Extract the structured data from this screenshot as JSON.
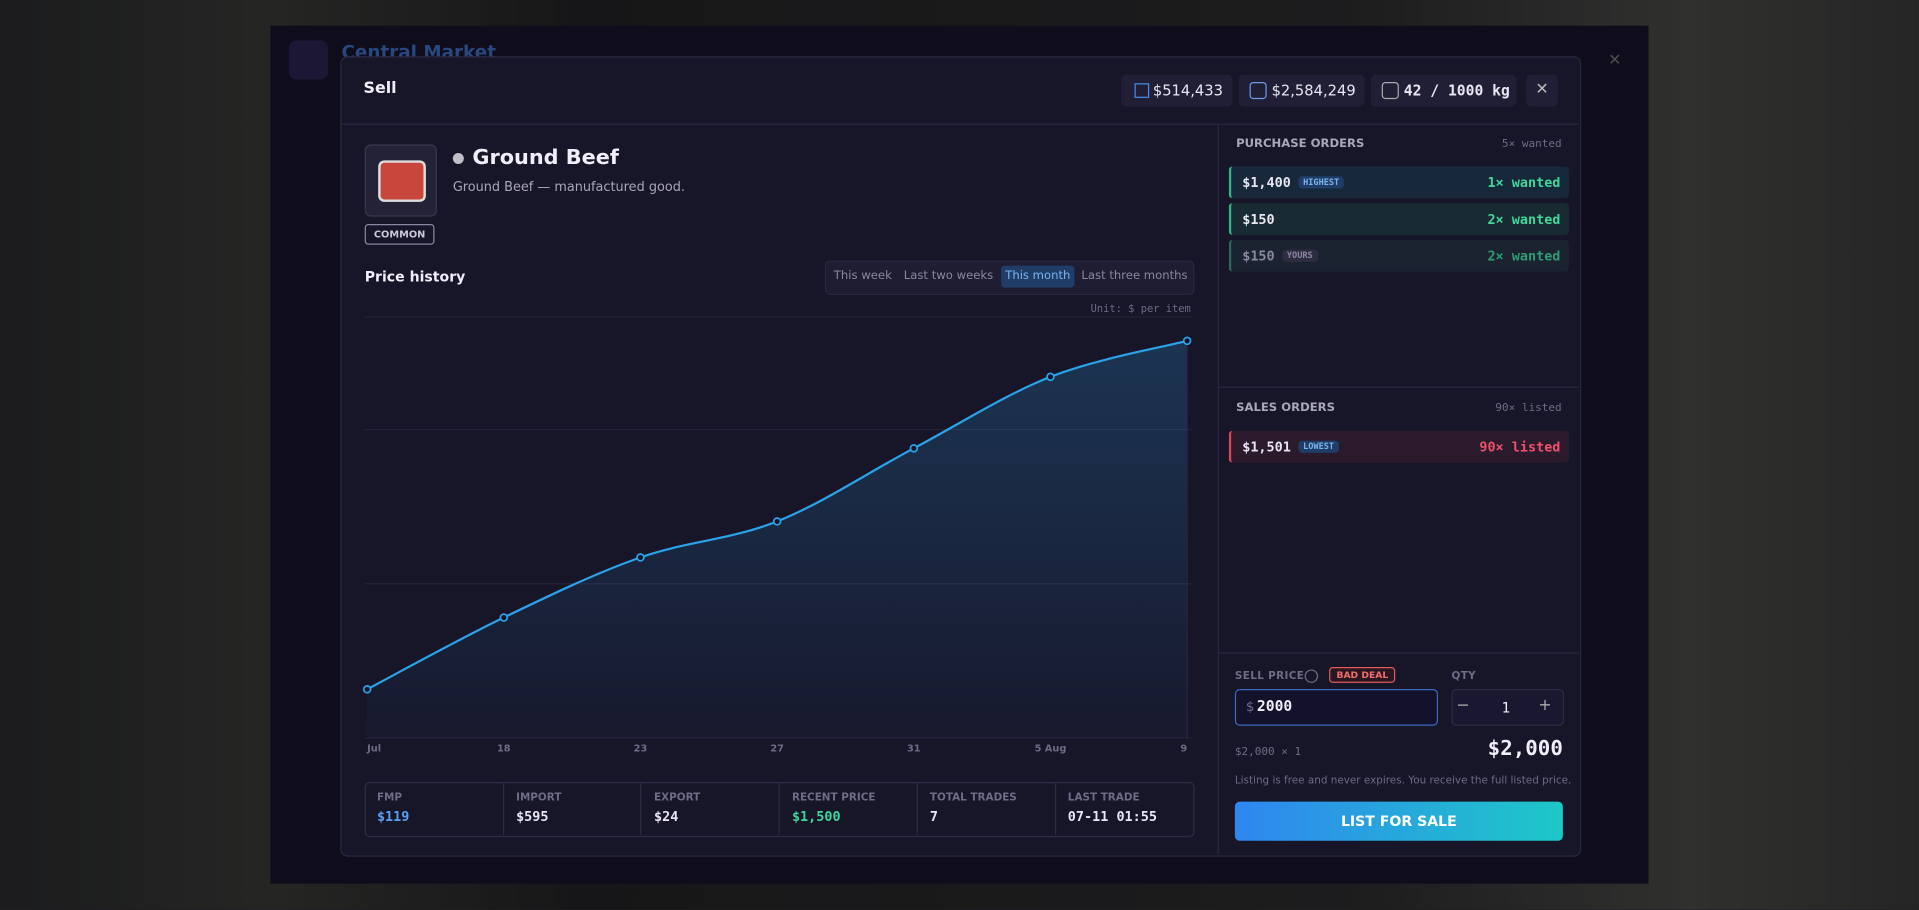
{
  "app": {
    "title": "Central Market"
  },
  "modal": {
    "title": "Sell",
    "balances": [
      "$514,433",
      "$2,584,249",
      "42 / 1000 kg"
    ]
  },
  "item": {
    "name": "Ground Beef",
    "description": "Ground Beef — manufactured good.",
    "rarity": "COMMON"
  },
  "price_history": {
    "title": "Price history",
    "tabs": [
      "This week",
      "Last two weeks",
      "This month",
      "Last three months"
    ],
    "active_tab": "This month",
    "unit": "Unit: $ per item"
  },
  "chart_data": {
    "type": "line",
    "categories": [
      "Jul",
      "18",
      "23",
      "27",
      "31",
      "5 Aug",
      "9"
    ],
    "values": [
      184,
      455,
      682,
      818,
      1094,
      1364,
      1500
    ],
    "ylim": [
      0,
      1590
    ],
    "color": "#2aa3e8"
  },
  "stats": [
    {
      "label": "FMP",
      "value": "$119"
    },
    {
      "label": "IMPORT",
      "value": "$595"
    },
    {
      "label": "EXPORT",
      "value": "$24"
    },
    {
      "label": "RECENT PRICE",
      "value": "$1,500"
    },
    {
      "label": "TOTAL TRADES",
      "value": "7"
    },
    {
      "label": "LAST TRADE",
      "value": "07-11 01:55"
    }
  ],
  "purchase_orders": {
    "title": "PURCHASE ORDERS",
    "summary": "5× wanted",
    "orders": [
      {
        "price": "$1,400",
        "badge": "HIGHEST",
        "qty": "1× wanted"
      },
      {
        "price": "$150",
        "qty": "2× wanted"
      },
      {
        "price": "$150",
        "badge": "YOURS",
        "qty": "2× wanted"
      }
    ]
  },
  "sales_orders": {
    "title": "SALES ORDERS",
    "summary": "90× listed",
    "orders": [
      {
        "price": "$1,501",
        "badge": "LOWEST",
        "qty": "90× listed"
      }
    ]
  },
  "sell_form": {
    "price_label": "SELL PRICE",
    "warning": "BAD DEAL",
    "qty_label": "QTY",
    "currency": "$",
    "price_input": "2000",
    "qty": "1",
    "calculation": "$2,000 × 1",
    "total": "$2,000",
    "note": "Listing is free and never expires. You receive the full listed price.",
    "button": "LIST FOR SALE"
  }
}
